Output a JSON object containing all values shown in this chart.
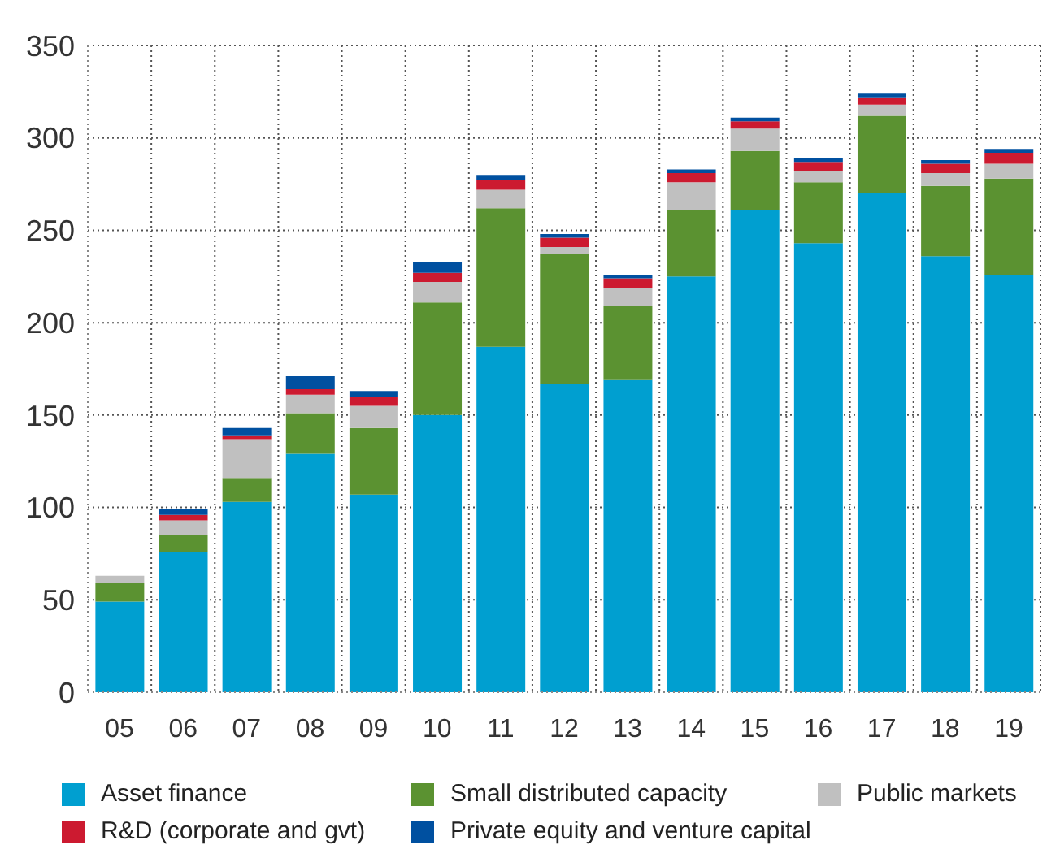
{
  "chart_data": {
    "type": "bar",
    "stacked": true,
    "categories": [
      "05",
      "06",
      "07",
      "08",
      "09",
      "10",
      "11",
      "12",
      "13",
      "14",
      "15",
      "16",
      "17",
      "18",
      "19"
    ],
    "series": [
      {
        "name": "Asset finance",
        "color": "#009fd0",
        "values": [
          49,
          76,
          103,
          129,
          107,
          150,
          187,
          167,
          169,
          225,
          261,
          243,
          270,
          236,
          226
        ]
      },
      {
        "name": "Small distributed capacity",
        "color": "#5b9231",
        "values": [
          10,
          9,
          13,
          22,
          36,
          61,
          75,
          70,
          40,
          36,
          32,
          33,
          42,
          38,
          52
        ]
      },
      {
        "name": "Public markets",
        "color": "#c0c0c0",
        "values": [
          4,
          8,
          21,
          10,
          12,
          11,
          10,
          4,
          10,
          15,
          12,
          6,
          6,
          7,
          8
        ]
      },
      {
        "name": "R&D (corporate and gvt)",
        "color": "#cc1a30",
        "values": [
          null,
          3,
          2,
          3,
          5,
          5,
          5,
          5,
          5,
          5,
          4,
          5,
          4,
          5,
          6
        ]
      },
      {
        "name": "Private equity and venture capital",
        "color": "#0050a0",
        "values": [
          null,
          3,
          4,
          7,
          3,
          6,
          3,
          2,
          2,
          2,
          2,
          2,
          2,
          2,
          2
        ]
      }
    ],
    "ylim": [
      0,
      350
    ],
    "yticks": [
      0,
      50,
      100,
      150,
      200,
      250,
      300,
      350
    ],
    "grid": true,
    "legend": "bottom"
  }
}
